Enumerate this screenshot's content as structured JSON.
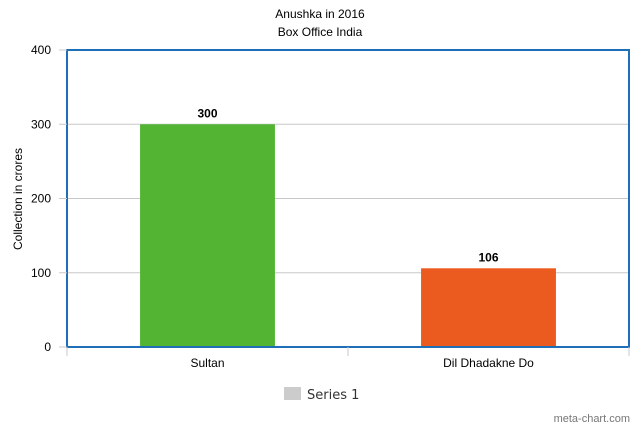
{
  "chart_data": {
    "type": "bar",
    "title": "Anushka in 2016",
    "subtitle": "Box Office India",
    "xlabel": "",
    "ylabel": "Collection in crores",
    "categories": [
      "Sultan",
      "Dil Dhadakne Do"
    ],
    "series": [
      {
        "name": "Series 1",
        "values": [
          300,
          106
        ],
        "colors": [
          "#53b332",
          "#eb5a1e"
        ]
      }
    ],
    "ylim": [
      0,
      400
    ],
    "yticks": [
      "0",
      "100",
      "200",
      "300",
      "400"
    ],
    "grid": true,
    "legend": "bottom-center",
    "legend_color": "#cccccc",
    "frame_color": "#1f6fb8"
  },
  "credit": "meta-chart.com"
}
